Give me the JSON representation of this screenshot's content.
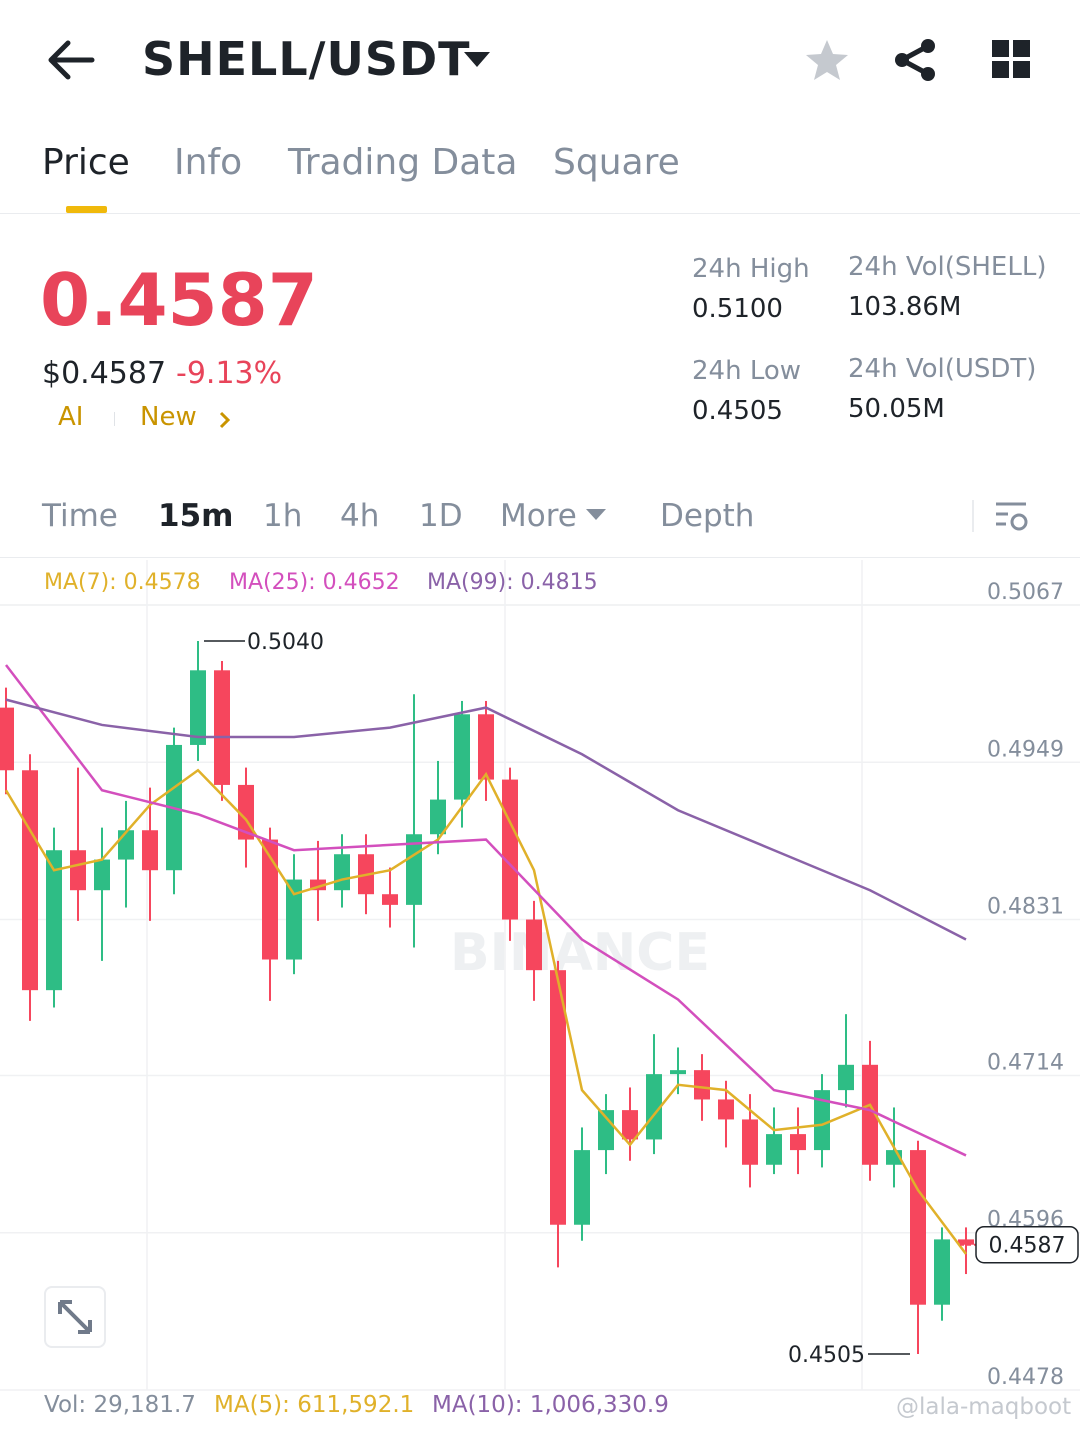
{
  "header": {
    "pair": "SHELL/USDT"
  },
  "tabs": [
    "Price",
    "Info",
    "Trading Data",
    "Square"
  ],
  "price": {
    "last": "0.4587",
    "usd": "$0.4587",
    "change": "-9.13%",
    "ai": "AI",
    "news": "New"
  },
  "stats": [
    {
      "label": "24h High",
      "value": "0.5100"
    },
    {
      "label": "24h Vol(SHELL)",
      "value": "103.86M"
    },
    {
      "label": "24h Low",
      "value": "0.4505"
    },
    {
      "label": "24h Vol(USDT)",
      "value": "50.05M"
    }
  ],
  "intervals": [
    "Time",
    "15m",
    "1h",
    "4h",
    "1D",
    "More",
    "Depth"
  ],
  "chart_data": {
    "type": "candlestick",
    "watermark": "BINANCE",
    "indicators": [
      {
        "name": "MA(7): 0.4578",
        "color": "#e0b12a",
        "x": [
          0,
          2,
          4,
          6,
          8,
          10,
          12,
          14,
          16,
          18,
          20,
          22,
          24,
          26,
          28,
          30,
          32,
          34,
          36,
          38,
          40
        ],
        "values": [
          0.4928,
          0.4868,
          0.4876,
          0.4917,
          0.4943,
          0.4906,
          0.485,
          0.4861,
          0.4868,
          0.4891,
          0.494,
          0.4868,
          0.4703,
          0.4662,
          0.4707,
          0.4703,
          0.4673,
          0.4677,
          0.4692,
          0.4628,
          0.458
        ]
      },
      {
        "name": "MA(25): 0.4652",
        "color": "#d34fbd",
        "x": [
          0,
          4,
          8,
          12,
          16,
          20,
          24,
          28,
          32,
          36,
          40
        ],
        "values": [
          0.5022,
          0.4928,
          0.491,
          0.4883,
          0.4887,
          0.4891,
          0.4816,
          0.4771,
          0.4703,
          0.4688,
          0.4654
        ]
      },
      {
        "name": "MA(99): 0.4815",
        "color": "#8a62a8",
        "x": [
          0,
          4,
          8,
          12,
          16,
          20,
          24,
          28,
          32,
          36,
          40
        ],
        "values": [
          0.4996,
          0.4977,
          0.4968,
          0.4968,
          0.4975,
          0.499,
          0.4955,
          0.4913,
          0.4883,
          0.4853,
          0.4816
        ]
      }
    ],
    "open": [
      0.499,
      0.4943,
      0.4778,
      0.4883,
      0.4853,
      0.4876,
      0.4898,
      0.4868,
      0.4962,
      0.5018,
      0.4932,
      0.4891,
      0.4801,
      0.4861,
      0.4853,
      0.488,
      0.485,
      0.4842,
      0.4895,
      0.4921,
      0.4985,
      0.4936,
      0.4831,
      0.4793,
      0.4602,
      0.4658,
      0.4688,
      0.4666,
      0.4715,
      0.4718,
      0.4696,
      0.4681,
      0.4647,
      0.467,
      0.4658,
      0.4703,
      0.4722,
      0.4647,
      0.4658,
      0.4542,
      0.4591
    ],
    "high": [
      0.5005,
      0.4955,
      0.49,
      0.4945,
      0.49,
      0.492,
      0.493,
      0.4975,
      0.504,
      0.5025,
      0.4945,
      0.49,
      0.488,
      0.489,
      0.4895,
      0.4895,
      0.487,
      0.5,
      0.495,
      0.4995,
      0.4995,
      0.4945,
      0.4845,
      0.48,
      0.4675,
      0.47,
      0.4705,
      0.4745,
      0.4735,
      0.473,
      0.471,
      0.47,
      0.469,
      0.469,
      0.4715,
      0.476,
      0.474,
      0.469,
      0.4665,
      0.46,
      0.46
    ],
    "low": [
      0.4925,
      0.4755,
      0.4765,
      0.483,
      0.48,
      0.484,
      0.483,
      0.485,
      0.495,
      0.492,
      0.487,
      0.477,
      0.479,
      0.483,
      0.484,
      0.4835,
      0.4825,
      0.481,
      0.488,
      0.49,
      0.492,
      0.4815,
      0.477,
      0.457,
      0.459,
      0.464,
      0.465,
      0.4655,
      0.47,
      0.468,
      0.466,
      0.463,
      0.464,
      0.464,
      0.4645,
      0.469,
      0.4635,
      0.463,
      0.4505,
      0.453,
      0.4565
    ],
    "close": [
      0.4943,
      0.4778,
      0.4883,
      0.4853,
      0.4876,
      0.4898,
      0.4868,
      0.4962,
      0.5018,
      0.4932,
      0.4891,
      0.4801,
      0.4861,
      0.4853,
      0.488,
      0.485,
      0.4842,
      0.4895,
      0.4921,
      0.4985,
      0.4936,
      0.4831,
      0.4793,
      0.4602,
      0.4658,
      0.4688,
      0.4666,
      0.4715,
      0.4718,
      0.4696,
      0.4681,
      0.4647,
      0.467,
      0.4658,
      0.4703,
      0.4722,
      0.4647,
      0.4658,
      0.4542,
      0.4591,
      0.4587
    ],
    "up_color": "#2ebd85",
    "down_color": "#f6465d",
    "ylim": [
      0.4478,
      0.5067
    ],
    "yticks": [
      0.5067,
      0.4949,
      0.4831,
      0.4714,
      0.4596,
      0.4478
    ],
    "grid": true,
    "high_marker": {
      "value": 0.504,
      "label": "0.5040"
    },
    "low_marker": 0.4505,
    "last": 0.4587
  },
  "volume": [
    "Vol: 29,181.7",
    "MA(5): 611,592.1",
    "MA(10): 1,006,330.9"
  ],
  "watermark": "@lala-maqboot"
}
